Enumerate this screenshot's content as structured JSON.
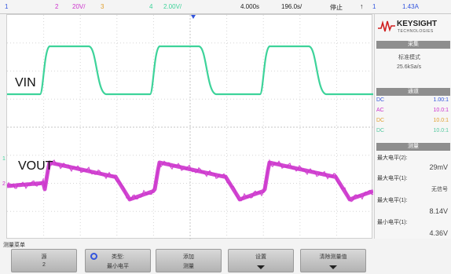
{
  "topbar": {
    "ch1_num": "1",
    "ch2_num": "2",
    "ch2_scale": "20V/",
    "ch3_num": "3",
    "ch4_num": "4",
    "ch4_scale": "2.00V/",
    "time_offset": "4.000s",
    "time_scale": "196.0s/",
    "run_state": "停止",
    "trigger_icon": "trigger-edge-icon",
    "trigger_ch": "1",
    "trigger_level": "1.43A"
  },
  "waveforms": {
    "vin_label": "VIN",
    "vout_label": "VOUT",
    "vin_color": "#3dd39a",
    "vout_color": "#cc33cc",
    "ground_marker_1": "1",
    "ground_marker_2": "2"
  },
  "panel": {
    "brand": "KEYSIGHT",
    "brand_sub": "TECHNOLOGIES",
    "acq_header": "采集",
    "acq_mode": "标准模式",
    "acq_rate": "25.6kSa/s",
    "ch_header": "通道",
    "channels": [
      {
        "name": "DC",
        "value": "1.00:1",
        "color": "#3355dd"
      },
      {
        "name": "AC",
        "value": "10.0:1",
        "color": "#cc33cc"
      },
      {
        "name": "DC",
        "value": "10.0:1",
        "color": "#e0a030"
      },
      {
        "name": "DC",
        "value": "10.0:1",
        "color": "#55c9a0"
      }
    ],
    "meas_header": "测量",
    "measurements": [
      {
        "label": "最大电平(2):",
        "value": "29mV"
      },
      {
        "label": "最大电平(1):",
        "value": "无信号"
      },
      {
        "label": "最大电平(1):",
        "value": "8.14V"
      },
      {
        "label": "最小电平(1):",
        "value": "4.36V"
      }
    ]
  },
  "bottom": {
    "menu_title": "测量菜单",
    "softkeys": [
      {
        "line1": "源",
        "line2": "2"
      },
      {
        "line1": "类型:",
        "line2": "最小电平"
      },
      {
        "line1": "添加",
        "line2": "测量"
      },
      {
        "line1": "设置",
        "line2": ""
      },
      {
        "line1": "清除测量值",
        "line2": ""
      }
    ]
  }
}
